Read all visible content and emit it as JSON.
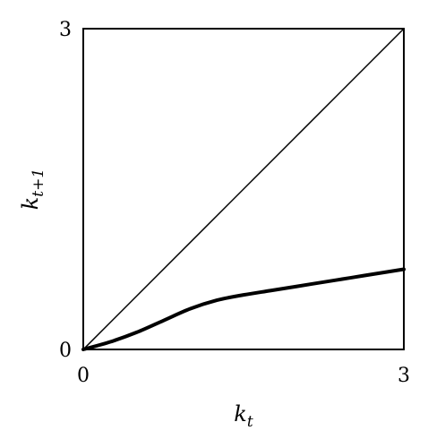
{
  "chart_data": {
    "type": "line",
    "title": "",
    "xlabel": "k_t",
    "ylabel": "k_{t+1}",
    "xlabel_parts": {
      "base": "k",
      "sub": "t"
    },
    "ylabel_parts": {
      "base": "k",
      "sub": "t+1"
    },
    "xlim": [
      0,
      3
    ],
    "ylim": [
      0,
      3
    ],
    "x_ticks": [
      "0",
      "3"
    ],
    "y_ticks": [
      "0",
      "3"
    ],
    "grid": false,
    "legend": "none",
    "series": [
      {
        "style": "thin",
        "color": "#000000",
        "x": [
          0,
          3
        ],
        "y": [
          0,
          3
        ]
      },
      {
        "style": "thick",
        "color": "#000000",
        "x": [
          0,
          0.25,
          0.5,
          0.75,
          1.0,
          1.25,
          1.5,
          1.75,
          2.0,
          2.25,
          2.5,
          2.75,
          3.0
        ],
        "y": [
          0,
          0.07,
          0.16,
          0.27,
          0.38,
          0.46,
          0.51,
          0.55,
          0.59,
          0.63,
          0.67,
          0.71,
          0.75
        ]
      }
    ]
  }
}
